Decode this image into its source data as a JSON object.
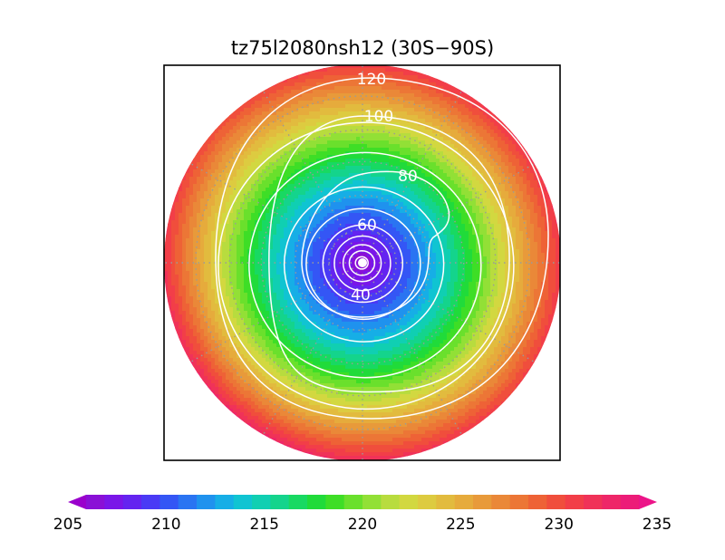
{
  "chart_data": {
    "type": "heatmap",
    "projection": "polar-stereographic",
    "title": "tz75l2080nsh12 (30S−90S)",
    "lat_range": [
      -90,
      -30
    ],
    "graticule": {
      "dotted": true,
      "meridian_step_deg": 30,
      "parallel_step_deg": 10
    },
    "colorbar": {
      "min": 205,
      "max": 235,
      "step": 1,
      "ticks": [
        205,
        210,
        215,
        220,
        225,
        230,
        235
      ],
      "tick_labels": [
        "205",
        "210",
        "215",
        "220",
        "225",
        "230",
        "235"
      ],
      "extend": "both",
      "colors": [
        "#8a10d6",
        "#7a16e8",
        "#6424f0",
        "#4a3af5",
        "#3456f5",
        "#2a74f2",
        "#1f92ee",
        "#16aee6",
        "#10c4d2",
        "#10cfb2",
        "#14d48c",
        "#18d962",
        "#20db3a",
        "#3ede26",
        "#6ae02c",
        "#92e036",
        "#b8dc3e",
        "#d2d840",
        "#ddcb40",
        "#e2bb3e",
        "#e6ab3c",
        "#e89a3a",
        "#ea8838",
        "#ec7636",
        "#ee6236",
        "#f04e3c",
        "#f23e48",
        "#f03258",
        "#ee2668",
        "#ec1c78"
      ],
      "under_color": "#9a00cc",
      "over_color": "#ec1488"
    },
    "contours": {
      "color": "#ffffff",
      "labeled": [
        {
          "value": "120"
        },
        {
          "value": "100"
        },
        {
          "value": "80"
        },
        {
          "value": "60"
        },
        {
          "value": "40"
        }
      ]
    },
    "field_range_shown": [
      205,
      233
    ]
  }
}
